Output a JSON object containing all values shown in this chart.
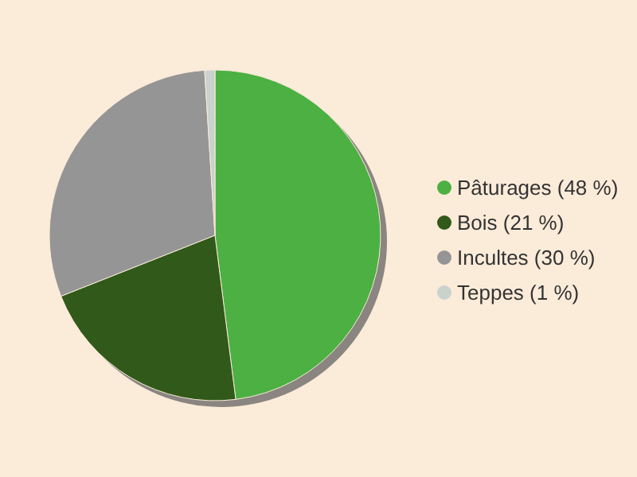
{
  "chart_data": {
    "type": "pie",
    "categories": [
      "Pâturages (48 %)",
      "Bois (21 %)",
      "Incultes (30 %)",
      "Teppes (1 %)"
    ],
    "values": [
      48,
      21,
      30,
      1
    ],
    "colors": [
      "#4cb043",
      "#30591a",
      "#959595",
      "#c9d2cd"
    ],
    "legend": "right"
  }
}
